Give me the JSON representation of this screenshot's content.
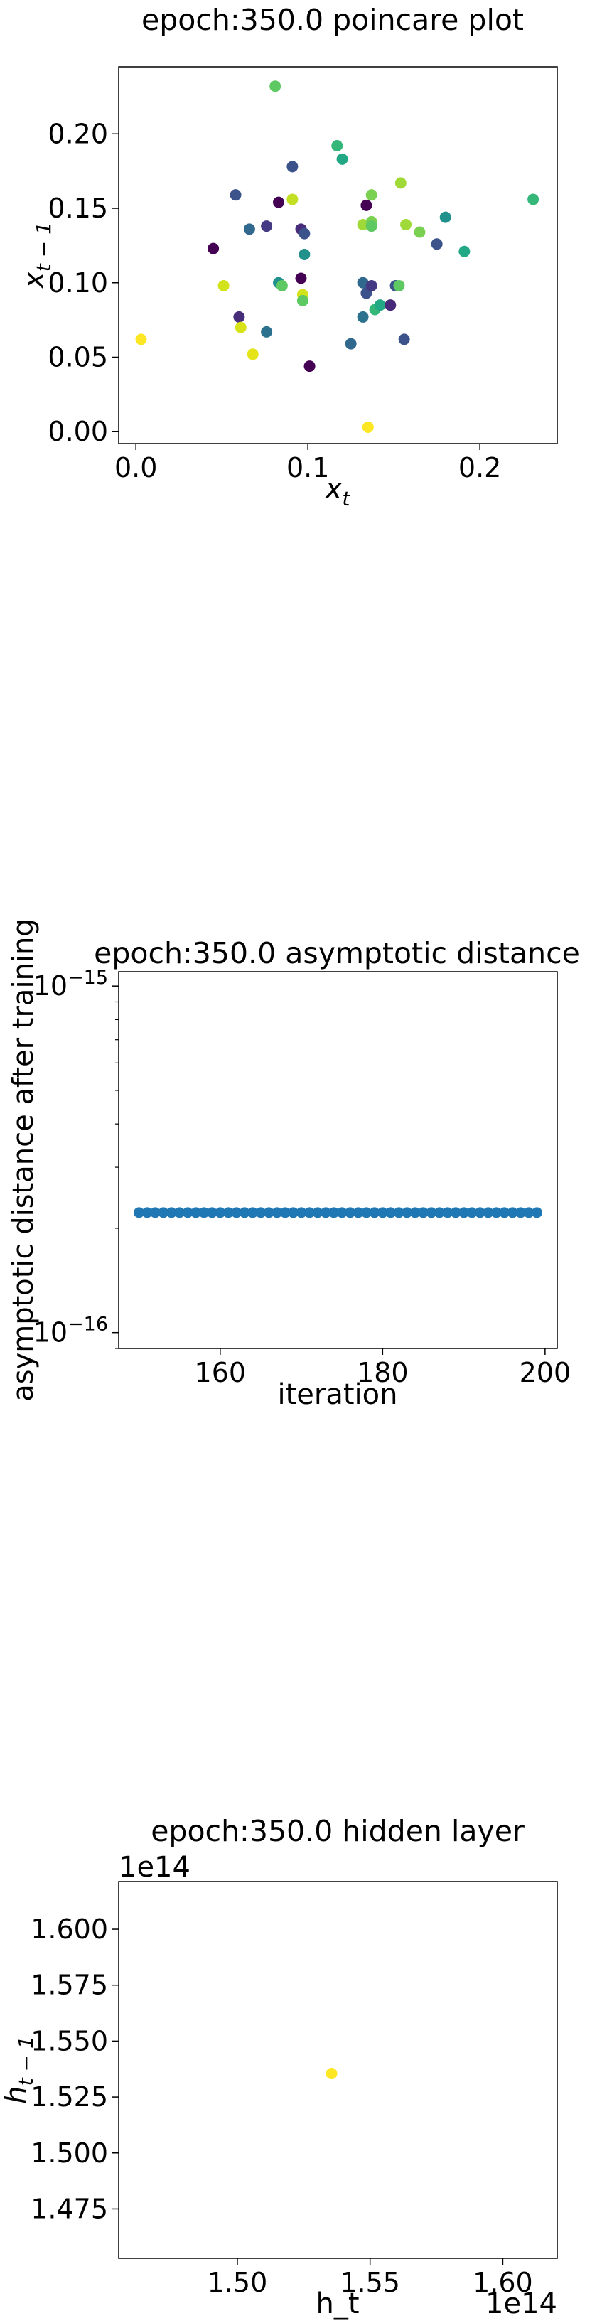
{
  "chart_data": [
    {
      "type": "scatter",
      "title": "epoch:350.0 poincare plot",
      "xlabel": "x",
      "xlabel_sub": "t",
      "ylabel": "x",
      "ylabel_sub": "t − 1",
      "xlim": [
        -0.01,
        0.245
      ],
      "ylim": [
        -0.008,
        0.245
      ],
      "xticks": [
        {
          "v": 0.0,
          "label": "0.0"
        },
        {
          "v": 0.1,
          "label": "0.1"
        },
        {
          "v": 0.2,
          "label": "0.2"
        }
      ],
      "yticks": [
        {
          "v": 0.0,
          "label": "0.00"
        },
        {
          "v": 0.05,
          "label": "0.05"
        },
        {
          "v": 0.1,
          "label": "0.10"
        },
        {
          "v": 0.15,
          "label": "0.15"
        },
        {
          "v": 0.2,
          "label": "0.20"
        }
      ],
      "colormap": "viridis",
      "points": [
        {
          "x": 0.003,
          "y": 0.062,
          "c": "#fde725"
        },
        {
          "x": 0.045,
          "y": 0.123,
          "c": "#440154"
        },
        {
          "x": 0.051,
          "y": 0.098,
          "c": "#d2e21b"
        },
        {
          "x": 0.058,
          "y": 0.159,
          "c": "#3b528b"
        },
        {
          "x": 0.06,
          "y": 0.077,
          "c": "#472c7a"
        },
        {
          "x": 0.061,
          "y": 0.07,
          "c": "#d8e219"
        },
        {
          "x": 0.066,
          "y": 0.136,
          "c": "#31688e"
        },
        {
          "x": 0.068,
          "y": 0.052,
          "c": "#e5e419"
        },
        {
          "x": 0.076,
          "y": 0.138,
          "c": "#443983"
        },
        {
          "x": 0.076,
          "y": 0.067,
          "c": "#2c728e"
        },
        {
          "x": 0.081,
          "y": 0.232,
          "c": "#5ec962"
        },
        {
          "x": 0.083,
          "y": 0.154,
          "c": "#440154"
        },
        {
          "x": 0.083,
          "y": 0.1,
          "c": "#21918c"
        },
        {
          "x": 0.085,
          "y": 0.098,
          "c": "#5ec962"
        },
        {
          "x": 0.091,
          "y": 0.178,
          "c": "#3b528b"
        },
        {
          "x": 0.091,
          "y": 0.156,
          "c": "#c2df23"
        },
        {
          "x": 0.096,
          "y": 0.136,
          "c": "#472c7a"
        },
        {
          "x": 0.096,
          "y": 0.103,
          "c": "#440154"
        },
        {
          "x": 0.097,
          "y": 0.092,
          "c": "#d2e21b"
        },
        {
          "x": 0.097,
          "y": 0.088,
          "c": "#5ec962"
        },
        {
          "x": 0.098,
          "y": 0.133,
          "c": "#3b528b"
        },
        {
          "x": 0.098,
          "y": 0.119,
          "c": "#21918c"
        },
        {
          "x": 0.101,
          "y": 0.044,
          "c": "#440154"
        },
        {
          "x": 0.117,
          "y": 0.192,
          "c": "#35b779"
        },
        {
          "x": 0.12,
          "y": 0.183,
          "c": "#22a884"
        },
        {
          "x": 0.125,
          "y": 0.059,
          "c": "#31688e"
        },
        {
          "x": 0.132,
          "y": 0.139,
          "c": "#a0da39"
        },
        {
          "x": 0.132,
          "y": 0.1,
          "c": "#31688e"
        },
        {
          "x": 0.132,
          "y": 0.077,
          "c": "#2c728e"
        },
        {
          "x": 0.134,
          "y": 0.152,
          "c": "#440154"
        },
        {
          "x": 0.134,
          "y": 0.093,
          "c": "#3b528b"
        },
        {
          "x": 0.135,
          "y": 0.003,
          "c": "#fde725"
        },
        {
          "x": 0.137,
          "y": 0.141,
          "c": "#7ad151"
        },
        {
          "x": 0.137,
          "y": 0.138,
          "c": "#5ec962"
        },
        {
          "x": 0.137,
          "y": 0.159,
          "c": "#7ad151"
        },
        {
          "x": 0.137,
          "y": 0.098,
          "c": "#443983"
        },
        {
          "x": 0.139,
          "y": 0.082,
          "c": "#35b779"
        },
        {
          "x": 0.142,
          "y": 0.085,
          "c": "#22a884"
        },
        {
          "x": 0.148,
          "y": 0.085,
          "c": "#482878"
        },
        {
          "x": 0.151,
          "y": 0.098,
          "c": "#3b528b"
        },
        {
          "x": 0.153,
          "y": 0.098,
          "c": "#5ec962"
        },
        {
          "x": 0.154,
          "y": 0.167,
          "c": "#a0da39"
        },
        {
          "x": 0.156,
          "y": 0.062,
          "c": "#3b528b"
        },
        {
          "x": 0.157,
          "y": 0.139,
          "c": "#a0da39"
        },
        {
          "x": 0.165,
          "y": 0.134,
          "c": "#7ad151"
        },
        {
          "x": 0.175,
          "y": 0.126,
          "c": "#3b528b"
        },
        {
          "x": 0.18,
          "y": 0.144,
          "c": "#21918c"
        },
        {
          "x": 0.191,
          "y": 0.121,
          "c": "#22a884"
        },
        {
          "x": 0.231,
          "y": 0.156,
          "c": "#35b779"
        }
      ]
    },
    {
      "type": "scatter",
      "scale_y": "log",
      "title": "epoch:350.0 asymptotic distance",
      "xlabel": "iteration",
      "ylabel": "asymptotic distance after training",
      "xlim": [
        147.5,
        201.5
      ],
      "ylim": [
        9e-17,
        1.1e-15
      ],
      "xticks": [
        {
          "v": 160,
          "label": "160"
        },
        {
          "v": 180,
          "label": "180"
        },
        {
          "v": 200,
          "label": "200"
        }
      ],
      "yticks": [
        {
          "v": 1e-16,
          "base": "10",
          "exp": "−16"
        },
        {
          "v": 1e-15,
          "base": "10",
          "exp": "−15"
        }
      ],
      "x_start": 150,
      "x_end": 199,
      "y_value": 2.22e-16,
      "marker_color": "#1f77b4"
    },
    {
      "type": "scatter",
      "title": "epoch:350.0 hidden layer",
      "xlabel": "h_t",
      "ylabel": "h",
      "ylabel_sub": "t − 1",
      "x_offset_label": "1e14",
      "y_offset_label": "1e14",
      "xlim": [
        1.4553,
        1.6205
      ],
      "ylim": [
        1.4529,
        1.6213
      ],
      "xticks": [
        {
          "v": 1.5,
          "label": "1.50"
        },
        {
          "v": 1.55,
          "label": "1.55"
        },
        {
          "v": 1.6,
          "label": "1.60"
        }
      ],
      "yticks": [
        {
          "v": 1.475,
          "label": "1.475"
        },
        {
          "v": 1.5,
          "label": "1.500"
        },
        {
          "v": 1.525,
          "label": "1.525"
        },
        {
          "v": 1.55,
          "label": "1.550"
        },
        {
          "v": 1.575,
          "label": "1.575"
        },
        {
          "v": 1.6,
          "label": "1.600"
        }
      ],
      "points": [
        {
          "x": 1.5355,
          "y": 1.5355,
          "c": "#fde725"
        }
      ]
    }
  ]
}
